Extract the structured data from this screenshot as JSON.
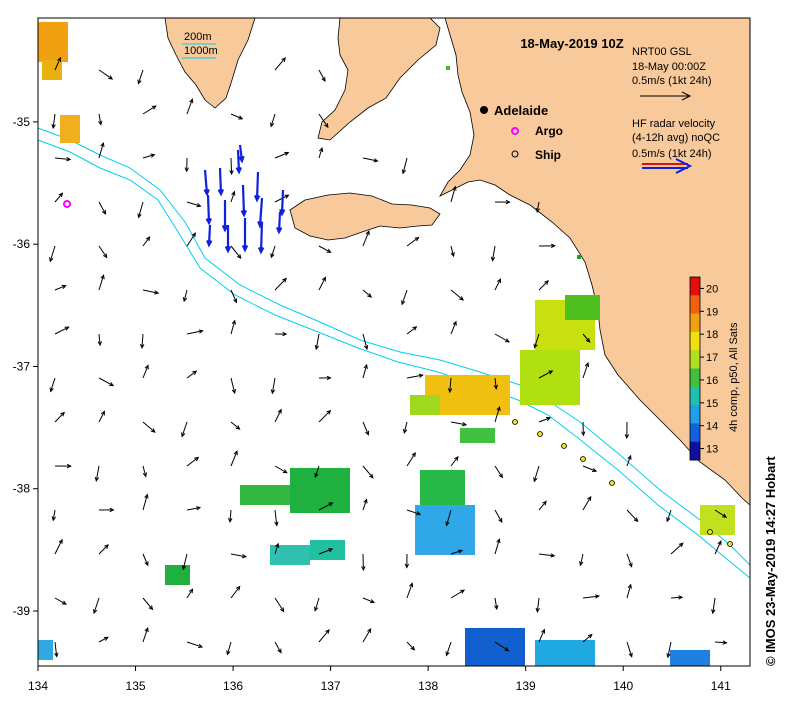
{
  "title": "18-May-2019 10Z",
  "depth_legend": {
    "contour1": "200m",
    "contour2": "1000m"
  },
  "places": {
    "adelaide": "Adelaide",
    "argo": "Argo",
    "ship": "Ship"
  },
  "scale_model": {
    "line1": "NRT00 GSL",
    "line2": "18-May 00:00Z",
    "line3": "0.5m/s (1kt 24h)"
  },
  "scale_radar": {
    "line1": "HF radar velocity",
    "line2": "(4-12h avg) noQC",
    "line3": "0.5m/s (1kt 24h)"
  },
  "colorbar": {
    "label": "4h comp, p50, All Sats",
    "ticks": [
      "20",
      "19",
      "18",
      "17",
      "16",
      "15",
      "14",
      "13"
    ],
    "min": 12.5,
    "max": 20.5
  },
  "axes": {
    "x_ticks": [
      "134",
      "135",
      "136",
      "137",
      "138",
      "139",
      "140",
      "141"
    ],
    "y_ticks": [
      "-35",
      "-36",
      "-37",
      "-38",
      "-39"
    ],
    "x_range": [
      134,
      141.3
    ],
    "y_range": [
      -39.45,
      -34.15
    ]
  },
  "copyright": "© IMOS 23-May-2019 14:27 Hobart",
  "colors": {
    "land": "#f8c99a",
    "contour": "#00d0f0",
    "radar_arrow": "#1020e0",
    "argo": "#ff00ff"
  }
}
